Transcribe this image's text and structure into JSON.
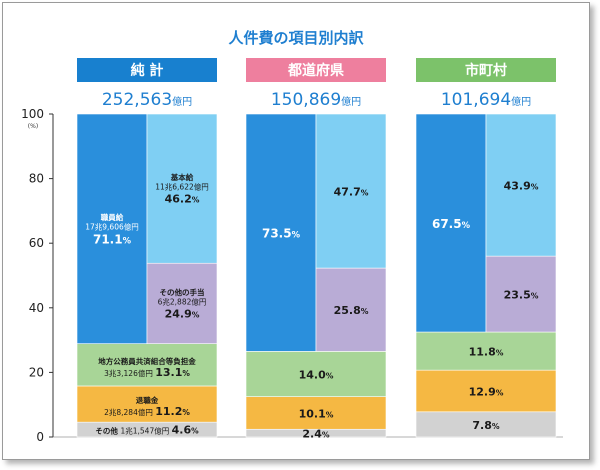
{
  "chart_data": {
    "type": "bar",
    "stacked": true,
    "title": "人件費の項目別内訳",
    "y_unit": "(%)",
    "ylim": [
      0,
      100
    ],
    "yticks": [
      0,
      20,
      40,
      60,
      80,
      100
    ],
    "colors": {
      "title": "#1f7fd0",
      "total_value": "#1f7fd0",
      "header_total": "#1880cf",
      "header_pref": "#ee7f9e",
      "header_city": "#7cc26a",
      "shokuinkyu": "#2a8fdc",
      "kihonkyu": "#7fcff3",
      "teate": "#b9acd6",
      "kyosai": "#a8d597",
      "taishoku": "#f5b843",
      "sonota": "#d2d2d2"
    },
    "columns": [
      {
        "header": "純 計",
        "total": "252,563",
        "total_unit": "億円",
        "split": {
          "name": "職員給",
          "amount": "17兆9,606億円",
          "value": 71.1,
          "label": "71.1",
          "sub": [
            {
              "key": "teate",
              "name": "その他の手当",
              "amount": "6兆2,882億円",
              "value": 24.9,
              "label": "24.9"
            },
            {
              "key": "kihonkyu",
              "name": "基本給",
              "amount": "11兆6,622億円",
              "value": 46.2,
              "label": "46.2"
            }
          ]
        },
        "lower": [
          {
            "key": "sonota",
            "name": "その他",
            "amount": "1兆1,547億円",
            "value": 4.6,
            "label": "4.6"
          },
          {
            "key": "taishoku",
            "name": "退職金",
            "amount": "2兆8,284億円",
            "value": 11.2,
            "label": "11.2"
          },
          {
            "key": "kyosai",
            "name": "地方公務員共済組合等負担金",
            "amount": "3兆3,126億円",
            "value": 13.1,
            "label": "13.1"
          }
        ]
      },
      {
        "header": "都道府県",
        "total": "150,869",
        "total_unit": "億円",
        "split": {
          "value": 73.5,
          "label": "73.5",
          "sub": [
            {
              "key": "teate",
              "value": 25.8,
              "label": "25.8"
            },
            {
              "key": "kihonkyu",
              "value": 47.7,
              "label": "47.7"
            }
          ]
        },
        "lower": [
          {
            "key": "sonota",
            "value": 2.4,
            "label": "2.4"
          },
          {
            "key": "taishoku",
            "value": 10.1,
            "label": "10.1"
          },
          {
            "key": "kyosai",
            "value": 14.0,
            "label": "14.0"
          }
        ]
      },
      {
        "header": "市町村",
        "total": "101,694",
        "total_unit": "億円",
        "split": {
          "value": 67.5,
          "label": "67.5",
          "sub": [
            {
              "key": "teate",
              "value": 23.5,
              "label": "23.5"
            },
            {
              "key": "kihonkyu",
              "value": 43.9,
              "label": "43.9"
            }
          ]
        },
        "lower": [
          {
            "key": "sonota",
            "value": 7.8,
            "label": "7.8"
          },
          {
            "key": "taishoku",
            "value": 12.9,
            "label": "12.9"
          },
          {
            "key": "kyosai",
            "value": 11.8,
            "label": "11.8"
          }
        ]
      }
    ]
  }
}
